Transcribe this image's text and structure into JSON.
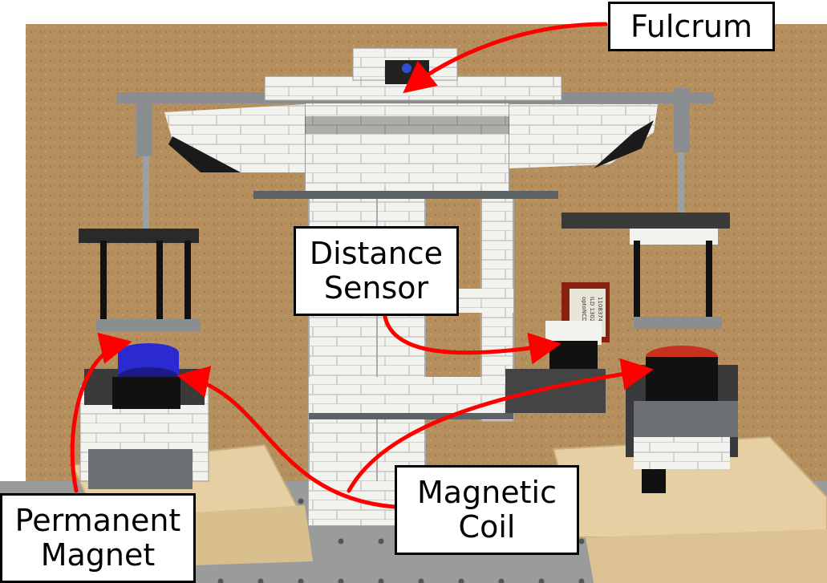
{
  "labels": {
    "fulcrum": "Fulcrum",
    "distance_sensor": [
      "Distance",
      "Sensor"
    ],
    "magnetic_coil": [
      "Magnetic",
      "Coil"
    ],
    "permanent_magnet": [
      "Permanent",
      "Magnet"
    ]
  },
  "sensor_text": [
    "optoNCDT1",
    "ILD 1302-200",
    "1108374"
  ],
  "colors": {
    "arrow": "#ff0000",
    "background_board": "#b58f5e",
    "lego_white": "#f2f2ee",
    "lego_black": "#1a1a1a",
    "lego_gray": "#8a8e91",
    "magnet_blue": "#2a2ad0",
    "coil_red": "#c83020",
    "plywood": "#e6cfa2"
  }
}
